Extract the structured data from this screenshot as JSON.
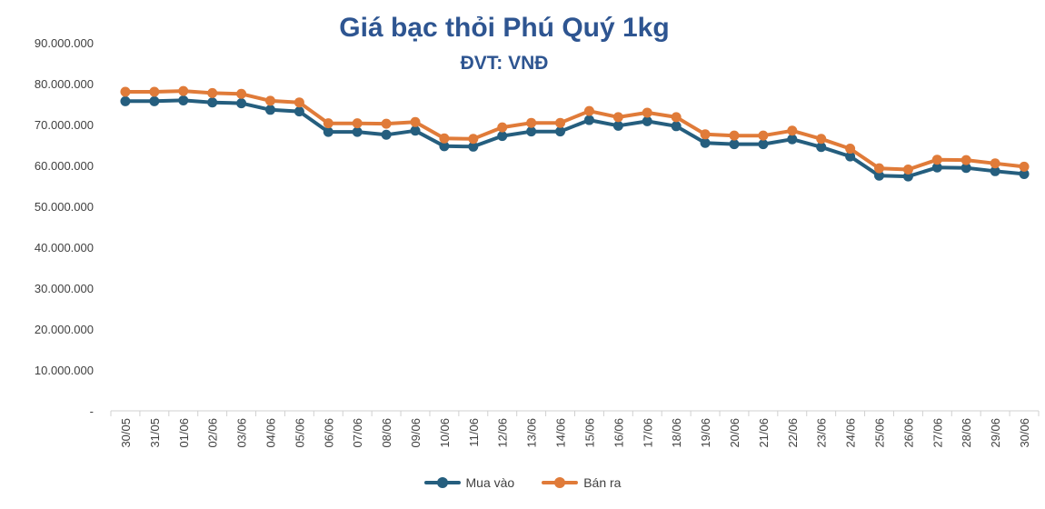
{
  "chart_data": {
    "type": "line",
    "title": "Giá bạc thỏi Phú Quý 1kg",
    "subtitle": "ĐVT: VNĐ",
    "categories": [
      "30/05",
      "31/05",
      "01/06",
      "02/06",
      "03/06",
      "04/06",
      "05/06",
      "06/06",
      "07/06",
      "08/06",
      "09/06",
      "10/06",
      "11/06",
      "12/06",
      "13/06",
      "14/06",
      "15/06",
      "16/06",
      "17/06",
      "18/06",
      "19/06",
      "20/06",
      "21/06",
      "22/06",
      "23/06",
      "24/06",
      "25/06",
      "26/06",
      "27/06",
      "28/06",
      "29/06",
      "30/06"
    ],
    "series": [
      {
        "name": "Mua vào",
        "color": "#255e7e",
        "values": [
          75700000,
          75700000,
          75900000,
          75400000,
          75200000,
          73600000,
          73200000,
          68200000,
          68200000,
          67500000,
          68500000,
          64700000,
          64600000,
          67200000,
          68300000,
          68300000,
          71100000,
          69700000,
          70800000,
          69600000,
          65500000,
          65200000,
          65200000,
          66400000,
          64500000,
          62200000,
          57500000,
          57300000,
          59500000,
          59400000,
          58600000,
          57900000
        ]
      },
      {
        "name": "Bán ra",
        "color": "#e07b39",
        "values": [
          78000000,
          78000000,
          78200000,
          77700000,
          77500000,
          75800000,
          75400000,
          70300000,
          70300000,
          70200000,
          70600000,
          66600000,
          66500000,
          69300000,
          70400000,
          70400000,
          73300000,
          71800000,
          72900000,
          71800000,
          67600000,
          67300000,
          67300000,
          68500000,
          66500000,
          64100000,
          59300000,
          59000000,
          61400000,
          61300000,
          60500000,
          59700000
        ]
      }
    ],
    "yticks": [
      "-",
      "10.000.000",
      "20.000.000",
      "30.000.000",
      "40.000.000",
      "50.000.000",
      "60.000.000",
      "70.000.000",
      "80.000.000",
      "90.000.000"
    ],
    "ylim": [
      0,
      90000000
    ],
    "xlabel": "",
    "ylabel": "",
    "grid": false,
    "legend": "bottom"
  }
}
